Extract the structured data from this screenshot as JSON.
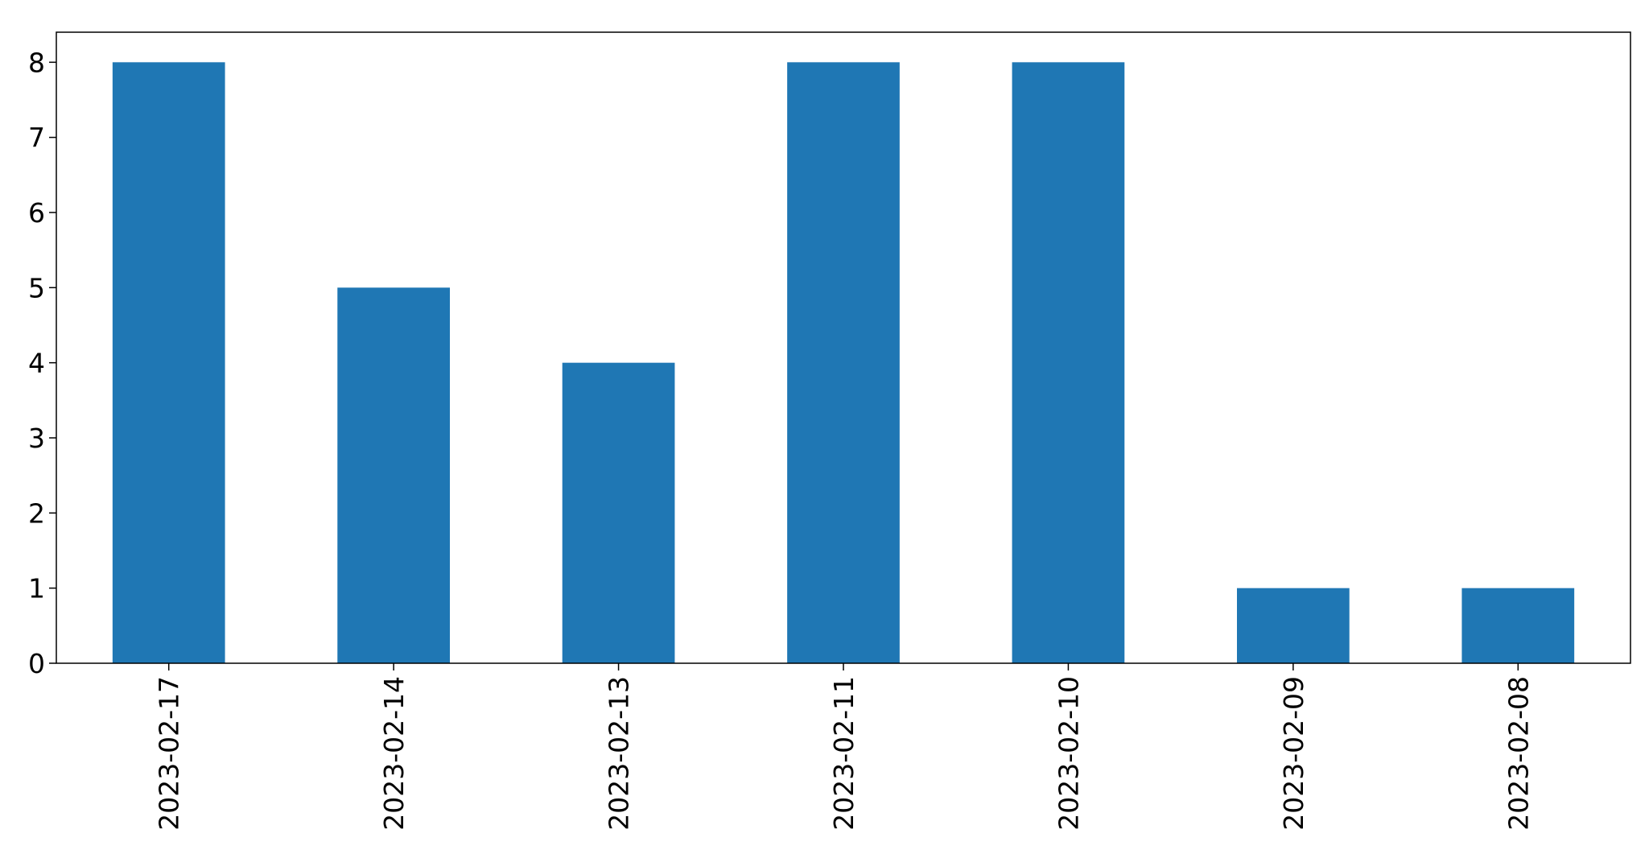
{
  "chart_data": {
    "type": "bar",
    "categories": [
      "2023-02-17",
      "2023-02-14",
      "2023-02-13",
      "2023-02-11",
      "2023-02-10",
      "2023-02-09",
      "2023-02-08"
    ],
    "values": [
      8,
      5,
      4,
      8,
      8,
      1,
      1
    ],
    "title": "",
    "xlabel": "",
    "ylabel": "",
    "ylim": [
      0,
      8.4
    ],
    "yticks": [
      "0",
      "1",
      "2",
      "3",
      "4",
      "5",
      "6",
      "7",
      "8"
    ],
    "grid": false,
    "legend": "none",
    "x_tick_rotation": "vertical",
    "bar_color": "#1f77b4"
  }
}
